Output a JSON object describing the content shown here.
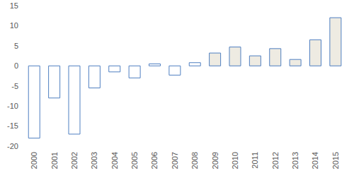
{
  "chart_data": {
    "type": "bar",
    "categories": [
      "2000",
      "2001",
      "2002",
      "2003",
      "2004",
      "2005",
      "2006",
      "2007",
      "2008",
      "2009",
      "2010",
      "2011",
      "2012",
      "2013",
      "2014",
      "2015"
    ],
    "values": [
      -18,
      -8,
      -17,
      -5.5,
      -1.5,
      -3,
      0.5,
      -2.3,
      0.8,
      3.2,
      4.7,
      2.5,
      4.3,
      1.6,
      6.5,
      12
    ],
    "colors": [
      "#ffffff",
      "#ffffff",
      "#ffffff",
      "#ffffff",
      "#ffffff",
      "#ffffff",
      "#ffffff",
      "#ffffff",
      "#ffffff",
      "#eeebe2",
      "#eeebe2",
      "#eeebe2",
      "#eeebe2",
      "#eeebe2",
      "#eeebe2",
      "#eeebe2"
    ],
    "ylim": [
      -20,
      15
    ],
    "yticks": [
      -20,
      -15,
      -10,
      -5,
      0,
      5,
      10,
      15
    ],
    "grid": false
  }
}
